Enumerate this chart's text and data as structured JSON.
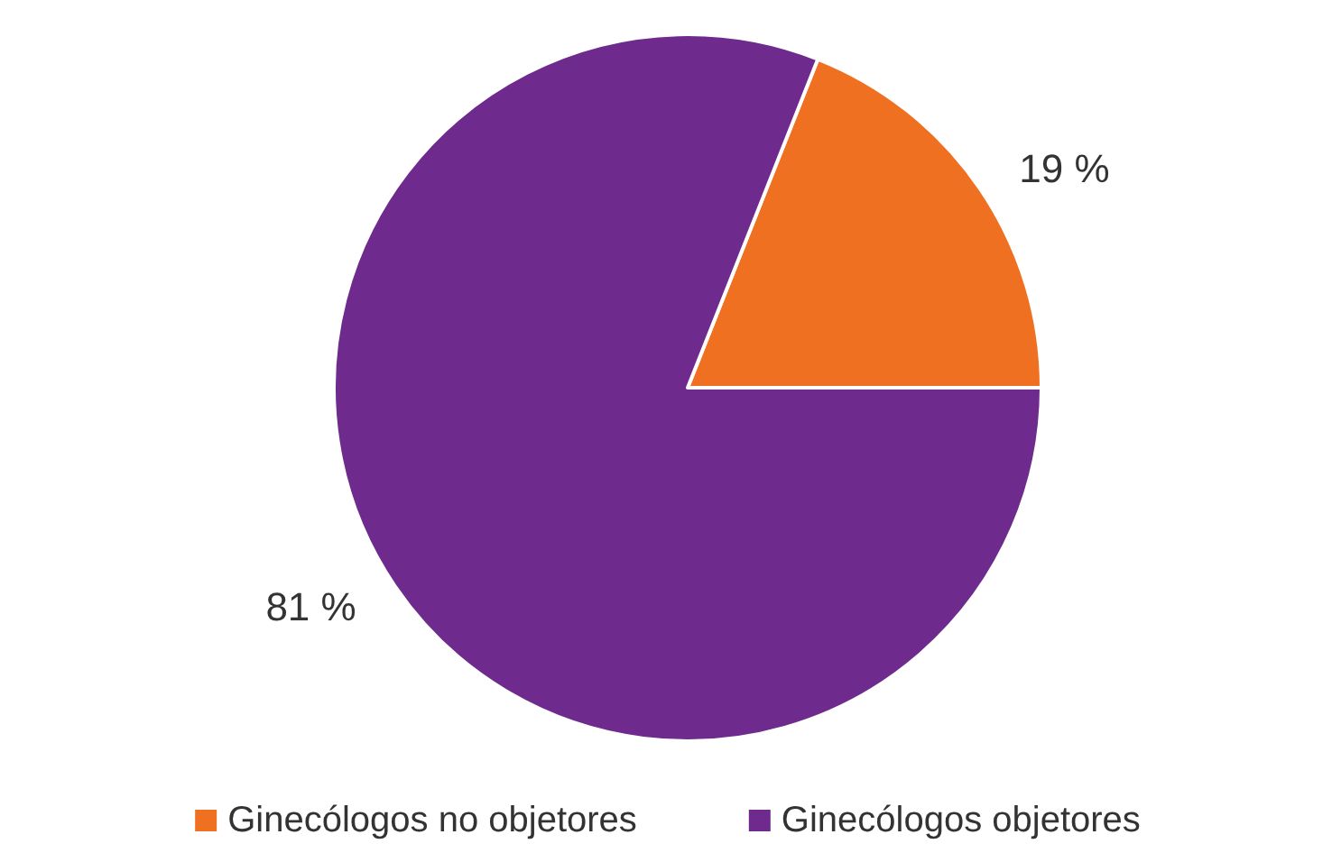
{
  "chart_data": {
    "type": "pie",
    "categories": [
      "Ginecólogos no objetores",
      "Ginecólogos objetores"
    ],
    "values": [
      19,
      81
    ],
    "colors": [
      "#f07022",
      "#6e2a8c"
    ],
    "value_labels": [
      "19 %",
      "81 %"
    ],
    "legend": "bottom"
  }
}
